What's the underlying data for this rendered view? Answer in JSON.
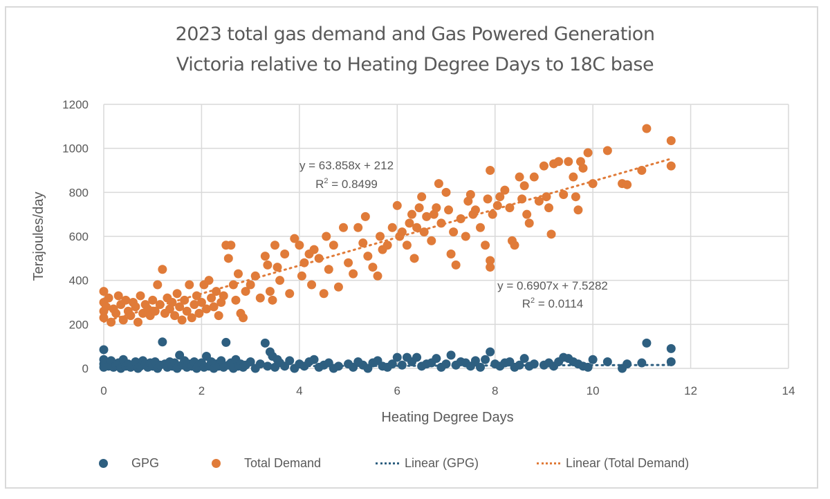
{
  "chart_data": {
    "type": "scatter",
    "title": [
      "2023 total gas demand and Gas Powered Generation",
      "Victoria relative to Heating Degree Days to 18C base"
    ],
    "xlabel": "Heating Degree Days",
    "ylabel": "Terajoules/day",
    "xlim": [
      0,
      14
    ],
    "ylim": [
      0,
      1200
    ],
    "x_ticks": [
      "0",
      "2",
      "4",
      "6",
      "8",
      "10",
      "12",
      "14"
    ],
    "y_ticks": [
      "0",
      "200",
      "400",
      "600",
      "800",
      "1000",
      "1200"
    ],
    "grid": true,
    "legend_position": "bottom",
    "colors": {
      "gpg": "#2E5F80",
      "total": "#E07B39",
      "grid": "#d9d9d9"
    },
    "legend": [
      "GPG",
      "Total Demand",
      "Linear (GPG)",
      "Linear (Total Demand)"
    ],
    "series": [
      {
        "name": "GPG",
        "points": [
          [
            0,
            85
          ],
          [
            0,
            40
          ],
          [
            0,
            20
          ],
          [
            0,
            5
          ],
          [
            0.05,
            30
          ],
          [
            0.1,
            10
          ],
          [
            0.15,
            35
          ],
          [
            0.2,
            5
          ],
          [
            0.25,
            15
          ],
          [
            0.3,
            25
          ],
          [
            0.35,
            0
          ],
          [
            0.4,
            40
          ],
          [
            0.45,
            10
          ],
          [
            0.5,
            20
          ],
          [
            0.55,
            5
          ],
          [
            0.6,
            15
          ],
          [
            0.65,
            30
          ],
          [
            0.7,
            0
          ],
          [
            0.75,
            10
          ],
          [
            0.8,
            35
          ],
          [
            0.85,
            20
          ],
          [
            0.9,
            5
          ],
          [
            0.95,
            25
          ],
          [
            1.0,
            10
          ],
          [
            1.05,
            30
          ],
          [
            1.1,
            0
          ],
          [
            1.15,
            15
          ],
          [
            1.2,
            120
          ],
          [
            1.25,
            20
          ],
          [
            1.3,
            5
          ],
          [
            1.35,
            30
          ],
          [
            1.4,
            10
          ],
          [
            1.45,
            25
          ],
          [
            1.5,
            0
          ],
          [
            1.55,
            60
          ],
          [
            1.6,
            15
          ],
          [
            1.65,
            35
          ],
          [
            1.7,
            5
          ],
          [
            1.75,
            20
          ],
          [
            1.8,
            10
          ],
          [
            1.85,
            30
          ],
          [
            1.9,
            0
          ],
          [
            1.95,
            15
          ],
          [
            2.0,
            25
          ],
          [
            2.05,
            5
          ],
          [
            2.1,
            55
          ],
          [
            2.15,
            10
          ],
          [
            2.2,
            30
          ],
          [
            2.25,
            0
          ],
          [
            2.3,
            20
          ],
          [
            2.35,
            10
          ],
          [
            2.4,
            35
          ],
          [
            2.45,
            5
          ],
          [
            2.5,
            118
          ],
          [
            2.55,
            15
          ],
          [
            2.6,
            25
          ],
          [
            2.65,
            0
          ],
          [
            2.7,
            40
          ],
          [
            2.75,
            10
          ],
          [
            2.8,
            20
          ],
          [
            2.85,
            5
          ],
          [
            2.9,
            15
          ],
          [
            3.0,
            30
          ],
          [
            3.1,
            0
          ],
          [
            3.2,
            20
          ],
          [
            3.3,
            115
          ],
          [
            3.35,
            10
          ],
          [
            3.4,
            75
          ],
          [
            3.45,
            55
          ],
          [
            3.5,
            5
          ],
          [
            3.55,
            40
          ],
          [
            3.6,
            25
          ],
          [
            3.7,
            10
          ],
          [
            3.8,
            35
          ],
          [
            3.9,
            0
          ],
          [
            4.0,
            20
          ],
          [
            4.1,
            10
          ],
          [
            4.2,
            30
          ],
          [
            4.3,
            40
          ],
          [
            4.4,
            5
          ],
          [
            4.5,
            15
          ],
          [
            4.6,
            25
          ],
          [
            4.7,
            0
          ],
          [
            4.8,
            10
          ],
          [
            5.0,
            20
          ],
          [
            5.1,
            5
          ],
          [
            5.2,
            30
          ],
          [
            5.3,
            15
          ],
          [
            5.4,
            0
          ],
          [
            5.5,
            25
          ],
          [
            5.6,
            35
          ],
          [
            5.7,
            10
          ],
          [
            5.8,
            5
          ],
          [
            5.9,
            20
          ],
          [
            6.0,
            50
          ],
          [
            6.1,
            15
          ],
          [
            6.2,
            50
          ],
          [
            6.3,
            30
          ],
          [
            6.4,
            50
          ],
          [
            6.5,
            10
          ],
          [
            6.6,
            20
          ],
          [
            6.7,
            25
          ],
          [
            6.8,
            45
          ],
          [
            6.9,
            5
          ],
          [
            7.0,
            20
          ],
          [
            7.1,
            60
          ],
          [
            7.2,
            15
          ],
          [
            7.3,
            30
          ],
          [
            7.4,
            25
          ],
          [
            7.5,
            10
          ],
          [
            7.6,
            35
          ],
          [
            7.7,
            5
          ],
          [
            7.8,
            40
          ],
          [
            7.9,
            75
          ],
          [
            8.0,
            20
          ],
          [
            8.1,
            10
          ],
          [
            8.2,
            25
          ],
          [
            8.3,
            30
          ],
          [
            8.4,
            5
          ],
          [
            8.5,
            15
          ],
          [
            8.6,
            45
          ],
          [
            8.7,
            10
          ],
          [
            8.8,
            20
          ],
          [
            9.0,
            15
          ],
          [
            9.1,
            25
          ],
          [
            9.2,
            10
          ],
          [
            9.3,
            30
          ],
          [
            9.4,
            50
          ],
          [
            9.5,
            45
          ],
          [
            9.6,
            30
          ],
          [
            9.7,
            20
          ],
          [
            9.8,
            10
          ],
          [
            9.9,
            5
          ],
          [
            10.0,
            40
          ],
          [
            10.3,
            30
          ],
          [
            10.6,
            0
          ],
          [
            10.7,
            20
          ],
          [
            11.0,
            25
          ],
          [
            11.1,
            115
          ],
          [
            11.6,
            90
          ],
          [
            11.6,
            30
          ]
        ]
      },
      {
        "name": "Total Demand",
        "points": [
          [
            0,
            350
          ],
          [
            0,
            300
          ],
          [
            0,
            260
          ],
          [
            0,
            230
          ],
          [
            0.05,
            280
          ],
          [
            0.1,
            320
          ],
          [
            0.15,
            210
          ],
          [
            0.2,
            270
          ],
          [
            0.25,
            250
          ],
          [
            0.3,
            330
          ],
          [
            0.35,
            290
          ],
          [
            0.4,
            220
          ],
          [
            0.45,
            310
          ],
          [
            0.5,
            260
          ],
          [
            0.55,
            240
          ],
          [
            0.6,
            300
          ],
          [
            0.65,
            280
          ],
          [
            0.7,
            210
          ],
          [
            0.75,
            330
          ],
          [
            0.8,
            250
          ],
          [
            0.85,
            290
          ],
          [
            0.9,
            270
          ],
          [
            0.95,
            240
          ],
          [
            1.0,
            310
          ],
          [
            1.05,
            260
          ],
          [
            1.1,
            380
          ],
          [
            1.15,
            290
          ],
          [
            1.2,
            450
          ],
          [
            1.25,
            250
          ],
          [
            1.3,
            320
          ],
          [
            1.35,
            270
          ],
          [
            1.4,
            300
          ],
          [
            1.45,
            240
          ],
          [
            1.5,
            340
          ],
          [
            1.55,
            280
          ],
          [
            1.6,
            220
          ],
          [
            1.65,
            310
          ],
          [
            1.7,
            260
          ],
          [
            1.75,
            380
          ],
          [
            1.8,
            230
          ],
          [
            1.85,
            290
          ],
          [
            1.9,
            330
          ],
          [
            1.95,
            250
          ],
          [
            2.0,
            300
          ],
          [
            2.05,
            380
          ],
          [
            2.1,
            270
          ],
          [
            2.15,
            400
          ],
          [
            2.2,
            320
          ],
          [
            2.25,
            280
          ],
          [
            2.3,
            350
          ],
          [
            2.35,
            240
          ],
          [
            2.4,
            300
          ],
          [
            2.45,
            330
          ],
          [
            2.5,
            560
          ],
          [
            2.55,
            500
          ],
          [
            2.6,
            560
          ],
          [
            2.65,
            380
          ],
          [
            2.7,
            310
          ],
          [
            2.75,
            430
          ],
          [
            2.8,
            250
          ],
          [
            2.85,
            230
          ],
          [
            2.9,
            350
          ],
          [
            3.0,
            380
          ],
          [
            3.1,
            420
          ],
          [
            3.2,
            320
          ],
          [
            3.3,
            510
          ],
          [
            3.35,
            470
          ],
          [
            3.4,
            350
          ],
          [
            3.45,
            310
          ],
          [
            3.5,
            560
          ],
          [
            3.55,
            460
          ],
          [
            3.6,
            400
          ],
          [
            3.7,
            520
          ],
          [
            3.8,
            340
          ],
          [
            3.9,
            590
          ],
          [
            4.0,
            560
          ],
          [
            4.05,
            420
          ],
          [
            4.1,
            480
          ],
          [
            4.2,
            520
          ],
          [
            4.25,
            380
          ],
          [
            4.3,
            540
          ],
          [
            4.4,
            500
          ],
          [
            4.5,
            340
          ],
          [
            4.55,
            600
          ],
          [
            4.6,
            450
          ],
          [
            4.7,
            560
          ],
          [
            4.8,
            370
          ],
          [
            4.9,
            640
          ],
          [
            5.0,
            480
          ],
          [
            5.1,
            430
          ],
          [
            5.2,
            640
          ],
          [
            5.3,
            570
          ],
          [
            5.35,
            690
          ],
          [
            5.4,
            510
          ],
          [
            5.5,
            460
          ],
          [
            5.6,
            420
          ],
          [
            5.65,
            600
          ],
          [
            5.7,
            540
          ],
          [
            5.8,
            560
          ],
          [
            5.9,
            640
          ],
          [
            6.0,
            740
          ],
          [
            6.05,
            600
          ],
          [
            6.1,
            620
          ],
          [
            6.2,
            560
          ],
          [
            6.25,
            660
          ],
          [
            6.3,
            700
          ],
          [
            6.35,
            500
          ],
          [
            6.4,
            640
          ],
          [
            6.45,
            730
          ],
          [
            6.5,
            780
          ],
          [
            6.55,
            620
          ],
          [
            6.6,
            690
          ],
          [
            6.7,
            580
          ],
          [
            6.75,
            700
          ],
          [
            6.8,
            730
          ],
          [
            6.85,
            840
          ],
          [
            6.9,
            660
          ],
          [
            7.0,
            800
          ],
          [
            7.05,
            720
          ],
          [
            7.1,
            520
          ],
          [
            7.15,
            620
          ],
          [
            7.2,
            470
          ],
          [
            7.3,
            680
          ],
          [
            7.4,
            600
          ],
          [
            7.45,
            760
          ],
          [
            7.5,
            790
          ],
          [
            7.55,
            700
          ],
          [
            7.6,
            720
          ],
          [
            7.7,
            640
          ],
          [
            7.8,
            560
          ],
          [
            7.85,
            770
          ],
          [
            7.9,
            900
          ],
          [
            7.95,
            700
          ],
          [
            7.9,
            490
          ],
          [
            7.9,
            460
          ],
          [
            8.05,
            740
          ],
          [
            8.1,
            780
          ],
          [
            8.2,
            810
          ],
          [
            8.3,
            730
          ],
          [
            8.35,
            580
          ],
          [
            8.4,
            560
          ],
          [
            8.5,
            870
          ],
          [
            8.55,
            770
          ],
          [
            8.6,
            830
          ],
          [
            8.65,
            700
          ],
          [
            8.7,
            660
          ],
          [
            8.8,
            870
          ],
          [
            8.9,
            760
          ],
          [
            9.0,
            920
          ],
          [
            9.05,
            780
          ],
          [
            9.1,
            730
          ],
          [
            9.15,
            610
          ],
          [
            9.2,
            930
          ],
          [
            9.3,
            940
          ],
          [
            9.4,
            790
          ],
          [
            9.5,
            940
          ],
          [
            9.6,
            870
          ],
          [
            9.65,
            780
          ],
          [
            9.7,
            720
          ],
          [
            9.75,
            940
          ],
          [
            9.8,
            910
          ],
          [
            9.9,
            980
          ],
          [
            10.0,
            840
          ],
          [
            10.3,
            990
          ],
          [
            10.6,
            840
          ],
          [
            10.7,
            835
          ],
          [
            11.0,
            900
          ],
          [
            11.1,
            1090
          ],
          [
            11.6,
            1035
          ],
          [
            11.6,
            920
          ]
        ]
      }
    ],
    "trendlines": [
      {
        "name": "Linear (GPG)",
        "slope": 0.6907,
        "intercept": 7.5282,
        "x_range": [
          0,
          11.6
        ],
        "equation": "y = 0.6907x + 7.5282",
        "r2_label": "R",
        "r2_sup": "2",
        "r2_value": " = 0.0114"
      },
      {
        "name": "Linear (Total Demand)",
        "slope": 63.858,
        "intercept": 212,
        "x_range": [
          0,
          11.6
        ],
        "equation": "y = 63.858x + 212",
        "r2_label": "R",
        "r2_sup": "2",
        "r2_value": " = 0.8499"
      }
    ]
  }
}
